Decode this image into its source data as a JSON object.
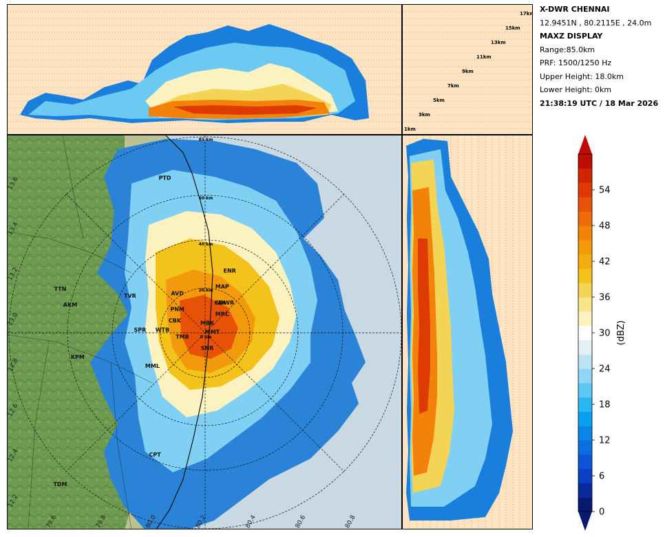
{
  "header": {
    "station": "X-DWR CHENNAI",
    "coords": "12.9451N , 80.2115E , 24.0m",
    "display": "MAXZ DISPLAY",
    "range": "Range:85.0km",
    "prf": "PRF: 1500/1250 Hz",
    "upper_height": "Upper Height: 18.0km",
    "lower_height": "Lower Height: 0km",
    "timestamp": "21:38:19 UTC / 18 Mar 2026"
  },
  "height_labels": [
    "1km",
    "3km",
    "5km",
    "7km",
    "9km",
    "11km",
    "13km",
    "15km",
    "17km"
  ],
  "range_rings": [
    "85 km",
    "60 km",
    "40 km",
    "20 km",
    "0 km"
  ],
  "sites": [
    {
      "code": "PTD",
      "lon": 80.05,
      "lat": 13.62
    },
    {
      "code": "ENR",
      "lon": 80.31,
      "lat": 13.21
    },
    {
      "code": "TTN",
      "lon": 79.63,
      "lat": 13.13
    },
    {
      "code": "AKM",
      "lon": 79.67,
      "lat": 13.06
    },
    {
      "code": "MAP",
      "lon": 80.28,
      "lat": 13.14
    },
    {
      "code": "TVR",
      "lon": 79.91,
      "lat": 13.1
    },
    {
      "code": "AVD",
      "lon": 80.1,
      "lat": 13.11
    },
    {
      "code": "CNI",
      "lon": 80.27,
      "lat": 13.07
    },
    {
      "code": "SDWR",
      "lon": 80.29,
      "lat": 13.07
    },
    {
      "code": "PNM",
      "lon": 80.1,
      "lat": 13.04
    },
    {
      "code": "MRC",
      "lon": 80.28,
      "lat": 13.02
    },
    {
      "code": "CBK",
      "lon": 80.09,
      "lat": 12.99
    },
    {
      "code": "MBK",
      "lon": 80.22,
      "lat": 12.98
    },
    {
      "code": "SPR",
      "lon": 79.95,
      "lat": 12.95
    },
    {
      "code": "WTB",
      "lon": 80.04,
      "lat": 12.95
    },
    {
      "code": "MMT",
      "lon": 80.24,
      "lat": 12.94
    },
    {
      "code": "TMB",
      "lon": 80.12,
      "lat": 12.92
    },
    {
      "code": "SNR",
      "lon": 80.22,
      "lat": 12.87
    },
    {
      "code": "KPM",
      "lon": 79.7,
      "lat": 12.83
    },
    {
      "code": "MML",
      "lon": 80.0,
      "lat": 12.79
    },
    {
      "code": "CPT",
      "lon": 80.01,
      "lat": 12.4
    },
    {
      "code": "TDM",
      "lon": 79.63,
      "lat": 12.27
    }
  ],
  "lat_ticks": [
    "13.6",
    "13.4",
    "13.2",
    "13.0",
    "12.8",
    "12.6",
    "12.4",
    "12.2"
  ],
  "lon_ticks": [
    "79.6",
    "79.8",
    "80.0",
    "80.2",
    "80.4",
    "80.6",
    "80.8"
  ],
  "colorbar": {
    "label": "(dBZ)",
    "ticks": [
      "0",
      "6",
      "12",
      "18",
      "24",
      "30",
      "36",
      "42",
      "48",
      "54"
    ],
    "colors": [
      "#081a6e",
      "#0a2a9c",
      "#0b3fc4",
      "#0b55d8",
      "#0a6fe0",
      "#0a86e8",
      "#0ba0ef",
      "#2ab6f3",
      "#5ec7f5",
      "#8fd6f6",
      "#bde4f5",
      "#e4f1f5",
      "#ffffff",
      "#fbf2c0",
      "#f7e38a",
      "#f4d454",
      "#f3c31c",
      "#f3ad0f",
      "#f39a0c",
      "#f2820a",
      "#ef6a08",
      "#e85206",
      "#de3a04",
      "#d22303",
      "#c00d02"
    ]
  }
}
